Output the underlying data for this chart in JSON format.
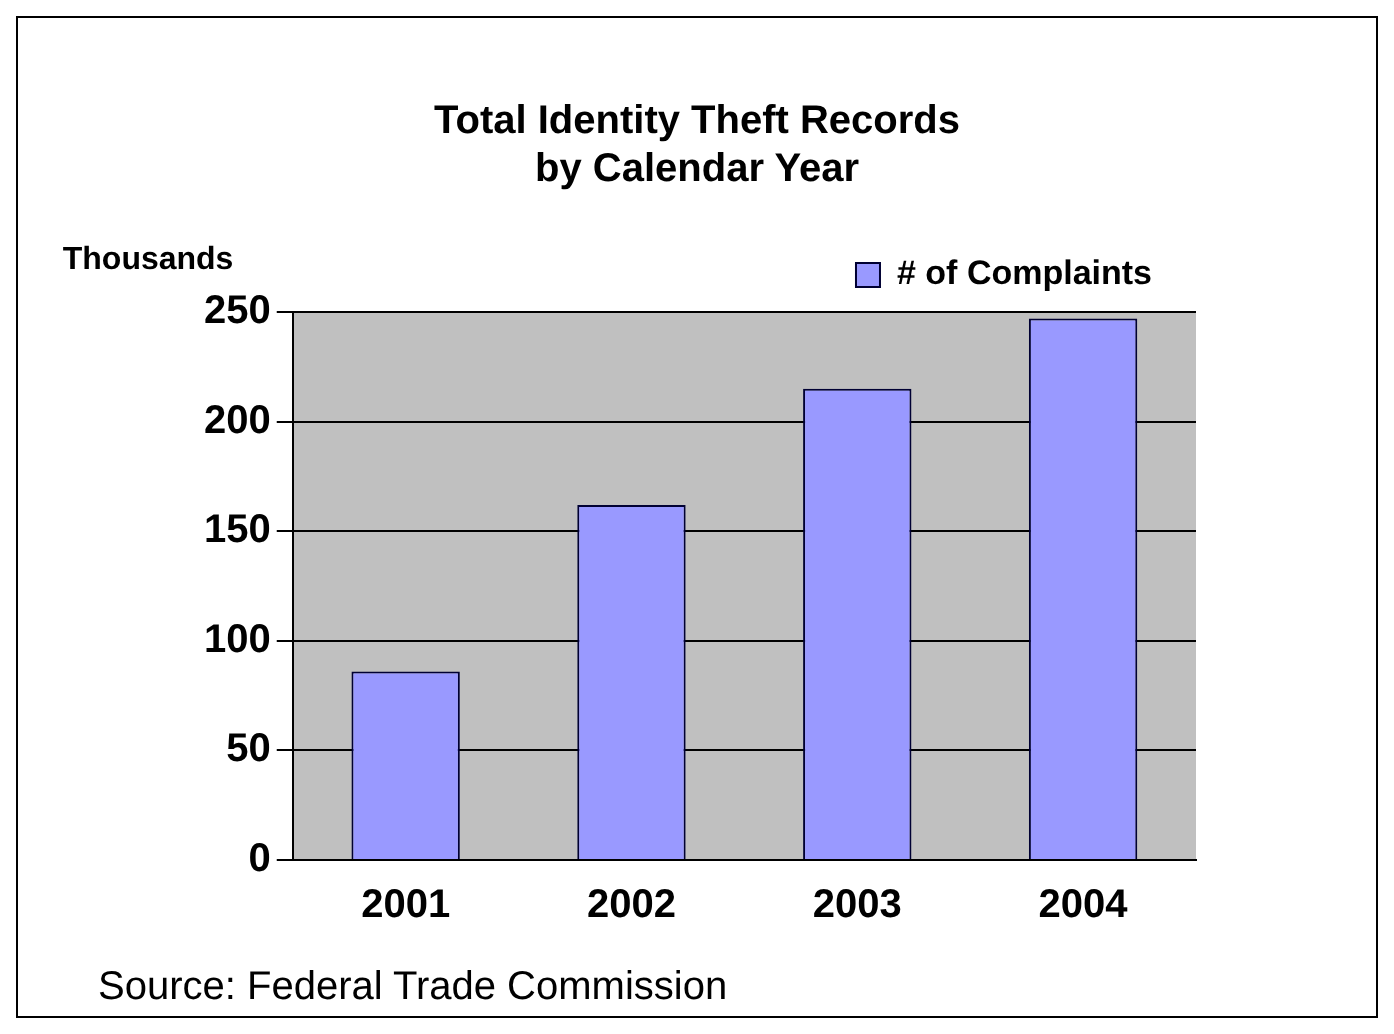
{
  "chart_data": {
    "type": "bar",
    "title": "Total Identity Theft Records\nby Calendar Year",
    "ylabel": "Thousands",
    "categories": [
      "2001",
      "2002",
      "2003",
      "2004"
    ],
    "series": [
      {
        "name": "# of Complaints",
        "color": "#9999ff",
        "values": [
          86,
          162,
          215,
          247
        ]
      }
    ],
    "ylim": [
      0,
      250
    ],
    "yticks": [
      0,
      50,
      100,
      150,
      200,
      250
    ],
    "grid": "y",
    "legend": "top right",
    "annotations": [
      "Source: Federal Trade Commission"
    ]
  }
}
